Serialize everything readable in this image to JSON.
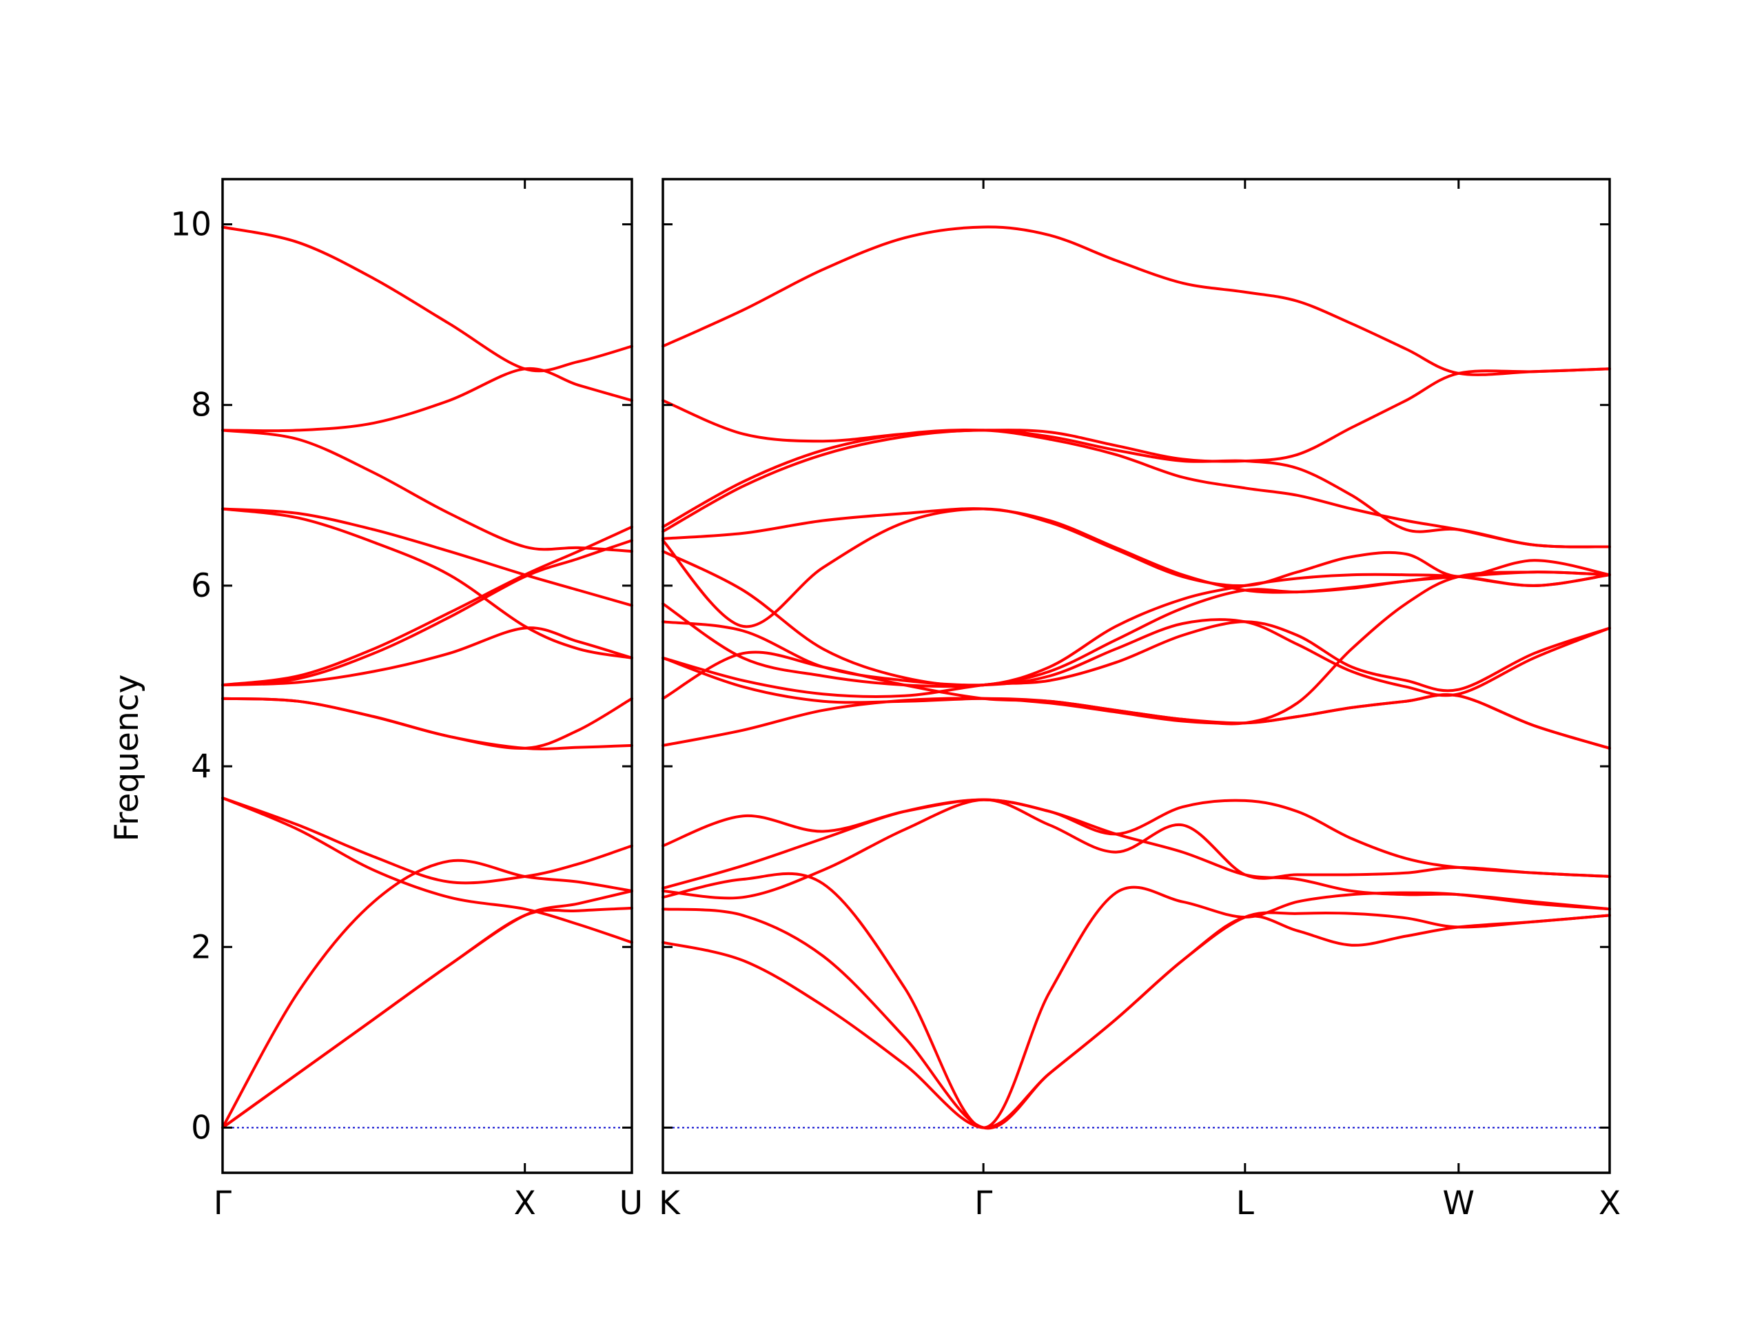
{
  "chart_data": {
    "type": "line",
    "ylabel": "Frequency",
    "ylim": [
      -0.5,
      10.5
    ],
    "yticks": [
      0,
      2,
      4,
      6,
      8,
      10
    ],
    "grid": false,
    "colors": {
      "bands": "#ff0000",
      "zero_line": "#0000cc",
      "frame": "#000000"
    },
    "panels": [
      {
        "name": "panel-gamma-x-u",
        "xticks": [
          {
            "x": 0.0,
            "label": "Γ"
          },
          {
            "x": 1.0,
            "label": "X"
          },
          {
            "x": 1.354,
            "label": "U"
          }
        ],
        "xlim": [
          0.0,
          1.354
        ],
        "series": [
          {
            "x": [
              0,
              0.25,
              0.5,
              0.75,
              1.0,
              1.177,
              1.354
            ],
            "values": [
              0,
              1.5,
              2.5,
              2.95,
              2.78,
              2.72,
              2.62
            ]
          },
          {
            "x": [
              0,
              0.25,
              0.5,
              0.75,
              1.0,
              1.177,
              1.354
            ],
            "values": [
              0,
              0.6,
              1.2,
              1.8,
              2.35,
              2.48,
              2.62
            ]
          },
          {
            "x": [
              0,
              0.25,
              0.5,
              0.75,
              1.0,
              1.177,
              1.354
            ],
            "values": [
              0,
              0.6,
              1.2,
              1.8,
              2.35,
              2.4,
              2.43
            ]
          },
          {
            "x": [
              0,
              0.25,
              0.5,
              0.75,
              1.0,
              1.177,
              1.354
            ],
            "values": [
              3.65,
              3.35,
              3.0,
              2.72,
              2.78,
              2.92,
              3.12
            ]
          },
          {
            "x": [
              0,
              0.25,
              0.5,
              0.75,
              1.0,
              1.177,
              1.354
            ],
            "values": [
              3.65,
              3.3,
              2.85,
              2.55,
              2.42,
              2.25,
              2.05
            ]
          },
          {
            "x": [
              0,
              0.25,
              0.5,
              0.75,
              1.0,
              1.177,
              1.354
            ],
            "values": [
              4.75,
              4.72,
              4.55,
              4.33,
              4.2,
              4.21,
              4.23
            ]
          },
          {
            "x": [
              0,
              0.25,
              0.5,
              0.75,
              1.0,
              1.177,
              1.354
            ],
            "values": [
              4.75,
              4.72,
              4.55,
              4.33,
              4.2,
              4.4,
              4.75
            ]
          },
          {
            "x": [
              0,
              0.25,
              0.5,
              0.75,
              1.0,
              1.177,
              1.354
            ],
            "values": [
              4.9,
              4.93,
              5.05,
              5.25,
              5.53,
              5.38,
              5.2
            ]
          },
          {
            "x": [
              0,
              0.25,
              0.5,
              0.75,
              1.0,
              1.177,
              1.354
            ],
            "values": [
              4.9,
              4.97,
              5.25,
              5.65,
              6.1,
              6.3,
              6.5
            ]
          },
          {
            "x": [
              0,
              0.25,
              0.5,
              0.75,
              1.0,
              1.177,
              1.354
            ],
            "values": [
              4.9,
              5.0,
              5.3,
              5.7,
              6.12,
              6.38,
              6.65
            ]
          },
          {
            "x": [
              0,
              0.25,
              0.5,
              0.75,
              1.0,
              1.177,
              1.354
            ],
            "values": [
              6.85,
              6.75,
              6.48,
              6.12,
              5.55,
              5.3,
              5.2
            ]
          },
          {
            "x": [
              0,
              0.25,
              0.5,
              0.75,
              1.0,
              1.177,
              1.354
            ],
            "values": [
              6.85,
              6.8,
              6.62,
              6.38,
              6.12,
              5.95,
              5.78
            ]
          },
          {
            "x": [
              0,
              0.25,
              0.5,
              0.75,
              1.0,
              1.177,
              1.354
            ],
            "values": [
              7.72,
              7.62,
              7.25,
              6.8,
              6.43,
              6.42,
              6.38
            ]
          },
          {
            "x": [
              0,
              0.25,
              0.5,
              0.75,
              1.0,
              1.177,
              1.354
            ],
            "values": [
              7.72,
              7.72,
              7.8,
              8.05,
              8.4,
              8.22,
              8.05
            ]
          },
          {
            "x": [
              0,
              0.25,
              0.5,
              0.75,
              1.0,
              1.177,
              1.354
            ],
            "values": [
              9.97,
              9.8,
              9.4,
              8.9,
              8.4,
              8.48,
              8.65
            ]
          }
        ]
      },
      {
        "name": "panel-k-gamma-l-w-x",
        "xticks": [
          {
            "x": 0.0,
            "label": "K"
          },
          {
            "x": 1.061,
            "label": "Γ"
          },
          {
            "x": 1.927,
            "label": "L"
          },
          {
            "x": 2.634,
            "label": "W"
          },
          {
            "x": 3.134,
            "label": "X"
          }
        ],
        "xlim": [
          0.0,
          3.134
        ],
        "series": [
          {
            "x": [
              0,
              0.265,
              0.53,
              0.8,
              1.061,
              1.28,
              1.5,
              1.72,
              1.927,
              2.1,
              2.28,
              2.46,
              2.634,
              2.884,
              3.134
            ],
            "values": [
              2.05,
              1.85,
              1.35,
              0.7,
              0,
              0.6,
              1.2,
              1.85,
              2.33,
              2.37,
              2.37,
              2.32,
              2.22,
              2.28,
              2.35
            ]
          },
          {
            "x": [
              0,
              0.265,
              0.53,
              0.8,
              1.061,
              1.28,
              1.5,
              1.72,
              1.927,
              2.1,
              2.28,
              2.46,
              2.634,
              2.884,
              3.134
            ],
            "values": [
              2.42,
              2.35,
              1.9,
              1.0,
              0,
              0.6,
              1.2,
              1.85,
              2.33,
              2.18,
              2.02,
              2.12,
              2.22,
              2.28,
              2.35
            ]
          },
          {
            "x": [
              0,
              0.265,
              0.53,
              0.8,
              1.061,
              1.28,
              1.5,
              1.72,
              1.927,
              2.1,
              2.28,
              2.46,
              2.634,
              2.884,
              3.134
            ],
            "values": [
              2.55,
              2.75,
              2.7,
              1.55,
              0,
              1.5,
              2.6,
              2.5,
              2.33,
              2.5,
              2.58,
              2.6,
              2.58,
              2.48,
              2.42
            ]
          },
          {
            "x": [
              0,
              0.265,
              0.53,
              0.8,
              1.061,
              1.28,
              1.5,
              1.72,
              1.927,
              2.1,
              2.28,
              2.46,
              2.634,
              2.884,
              3.134
            ],
            "values": [
              2.62,
              2.55,
              2.85,
              3.3,
              3.63,
              3.35,
              3.05,
              3.35,
              2.8,
              2.8,
              2.8,
              2.82,
              2.88,
              2.82,
              2.78
            ]
          },
          {
            "x": [
              0,
              0.265,
              0.53,
              0.8,
              1.061,
              1.28,
              1.5,
              1.72,
              1.927,
              2.1,
              2.28,
              2.46,
              2.634,
              2.884,
              3.134
            ],
            "values": [
              2.65,
              2.9,
              3.2,
              3.5,
              3.63,
              3.5,
              3.25,
              3.05,
              2.8,
              2.75,
              2.62,
              2.58,
              2.58,
              2.5,
              2.42
            ]
          },
          {
            "x": [
              0,
              0.265,
              0.53,
              0.8,
              1.061,
              1.28,
              1.5,
              1.72,
              1.927,
              2.1,
              2.28,
              2.46,
              2.634,
              2.884,
              3.134
            ],
            "values": [
              3.12,
              3.45,
              3.28,
              3.5,
              3.63,
              3.5,
              3.25,
              3.55,
              3.62,
              3.5,
              3.2,
              2.98,
              2.88,
              2.82,
              2.78
            ]
          },
          {
            "x": [
              0,
              0.265,
              0.53,
              0.8,
              1.061,
              1.28,
              1.5,
              1.72,
              1.927,
              2.1,
              2.28,
              2.46,
              2.634,
              2.884,
              3.134
            ],
            "values": [
              4.23,
              4.4,
              4.62,
              4.73,
              4.75,
              4.7,
              4.6,
              4.5,
              4.48,
              4.55,
              4.65,
              4.72,
              4.78,
              4.45,
              4.2
            ]
          },
          {
            "x": [
              0,
              0.265,
              0.53,
              0.8,
              1.061,
              1.28,
              1.5,
              1.72,
              1.927,
              2.1,
              2.28,
              2.46,
              2.634,
              2.884,
              3.134
            ],
            "values": [
              4.75,
              5.25,
              5.1,
              4.9,
              4.75,
              4.72,
              4.62,
              4.52,
              4.48,
              4.55,
              4.65,
              4.72,
              4.78,
              4.45,
              4.2
            ]
          },
          {
            "x": [
              0,
              0.265,
              0.53,
              0.8,
              1.061,
              1.28,
              1.5,
              1.72,
              1.927,
              2.1,
              2.28,
              2.46,
              2.634,
              2.884,
              3.134
            ],
            "values": [
              5.2,
              4.95,
              4.8,
              4.78,
              4.9,
              4.95,
              5.15,
              5.45,
              5.6,
              5.45,
              5.1,
              4.95,
              4.85,
              5.25,
              5.53
            ]
          },
          {
            "x": [
              0,
              0.265,
              0.53,
              0.8,
              1.061,
              1.28,
              1.5,
              1.72,
              1.927,
              2.1,
              2.28,
              2.46,
              2.634,
              2.884,
              3.134
            ],
            "values": [
              5.2,
              4.88,
              4.72,
              4.72,
              4.75,
              4.72,
              4.62,
              4.52,
              4.48,
              4.7,
              5.3,
              5.8,
              6.1,
              6.15,
              6.12
            ]
          },
          {
            "x": [
              0,
              0.265,
              0.53,
              0.8,
              1.061,
              1.28,
              1.5,
              1.72,
              1.927,
              2.1,
              2.28,
              2.46,
              2.634,
              2.884,
              3.134
            ],
            "values": [
              5.6,
              5.5,
              5.1,
              4.95,
              4.9,
              5.0,
              5.3,
              5.58,
              5.6,
              5.35,
              5.05,
              4.88,
              4.8,
              5.2,
              5.53
            ]
          },
          {
            "x": [
              0,
              0.265,
              0.53,
              0.8,
              1.061,
              1.28,
              1.5,
              1.72,
              1.927,
              2.1,
              2.28,
              2.46,
              2.634,
              2.884,
              3.134
            ],
            "values": [
              5.8,
              5.2,
              5.0,
              4.9,
              4.9,
              5.05,
              5.4,
              5.75,
              5.95,
              5.93,
              5.97,
              6.05,
              6.1,
              6.15,
              6.12
            ]
          },
          {
            "x": [
              0,
              0.265,
              0.53,
              0.8,
              1.061,
              1.28,
              1.5,
              1.72,
              1.927,
              2.1,
              2.28,
              2.46,
              2.634,
              2.884,
              3.134
            ],
            "values": [
              6.38,
              5.95,
              5.3,
              4.98,
              4.9,
              5.1,
              5.55,
              5.85,
              6.0,
              6.08,
              6.12,
              6.12,
              6.1,
              6.0,
              6.12
            ]
          },
          {
            "x": [
              0,
              0.265,
              0.53,
              0.8,
              1.061,
              1.28,
              1.5,
              1.72,
              1.927,
              2.1,
              2.28,
              2.46,
              2.634,
              2.884,
              3.134
            ],
            "values": [
              6.5,
              5.55,
              6.2,
              6.7,
              6.85,
              6.7,
              6.4,
              6.1,
              6.0,
              6.15,
              6.32,
              6.35,
              6.1,
              6.28,
              6.12
            ]
          },
          {
            "x": [
              0,
              0.265,
              0.53,
              0.8,
              1.061,
              1.28,
              1.5,
              1.72,
              1.927,
              2.1,
              2.28,
              2.46,
              2.634,
              2.884,
              3.134
            ],
            "values": [
              6.52,
              6.58,
              6.72,
              6.8,
              6.85,
              6.72,
              6.42,
              6.12,
              5.95,
              5.93,
              5.98,
              6.05,
              6.1,
              6.0,
              6.12
            ]
          },
          {
            "x": [
              0,
              0.265,
              0.53,
              0.8,
              1.061,
              1.28,
              1.5,
              1.72,
              1.927,
              2.1,
              2.28,
              2.46,
              2.634,
              2.884,
              3.134
            ],
            "values": [
              6.6,
              7.1,
              7.45,
              7.65,
              7.72,
              7.65,
              7.5,
              7.38,
              7.38,
              7.3,
              7.0,
              6.62,
              6.62,
              6.45,
              6.43
            ]
          },
          {
            "x": [
              0,
              0.265,
              0.53,
              0.8,
              1.061,
              1.28,
              1.5,
              1.72,
              1.927,
              2.1,
              2.28,
              2.46,
              2.634,
              2.884,
              3.134
            ],
            "values": [
              6.65,
              7.15,
              7.5,
              7.68,
              7.72,
              7.62,
              7.45,
              7.2,
              7.08,
              7.0,
              6.85,
              6.72,
              6.62,
              6.45,
              6.43
            ]
          },
          {
            "x": [
              0,
              0.265,
              0.53,
              0.8,
              1.061,
              1.28,
              1.5,
              1.72,
              1.927,
              2.1,
              2.28,
              2.46,
              2.634,
              2.884,
              3.134
            ],
            "values": [
              8.05,
              7.68,
              7.6,
              7.68,
              7.72,
              7.7,
              7.55,
              7.4,
              7.38,
              7.45,
              7.75,
              8.05,
              8.35,
              8.37,
              8.4
            ]
          },
          {
            "x": [
              0,
              0.265,
              0.53,
              0.8,
              1.061,
              1.28,
              1.5,
              1.72,
              1.927,
              2.1,
              2.28,
              2.46,
              2.634,
              2.884,
              3.134
            ],
            "values": [
              8.65,
              9.05,
              9.5,
              9.85,
              9.97,
              9.88,
              9.6,
              9.35,
              9.25,
              9.15,
              8.9,
              8.62,
              8.35,
              8.37,
              8.4
            ]
          }
        ]
      }
    ]
  }
}
